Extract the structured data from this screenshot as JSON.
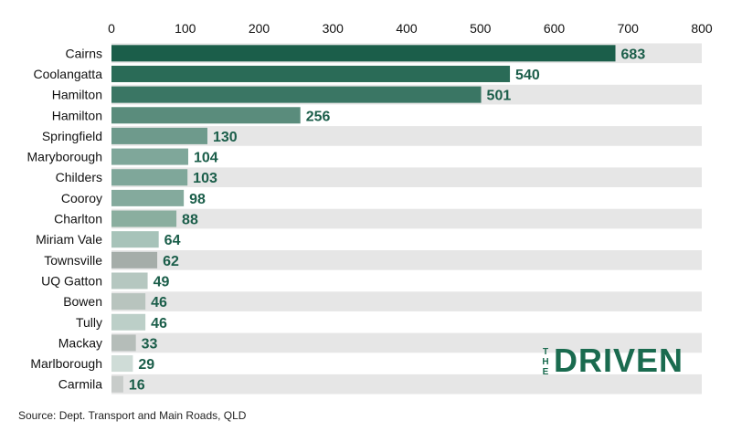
{
  "chart_data": {
    "type": "bar",
    "orientation": "horizontal",
    "categories": [
      "Cairns",
      "Coolangatta",
      "Hamilton",
      "Hamilton",
      "Springfield",
      "Maryborough",
      "Childers",
      "Cooroy",
      "Charlton",
      "Miriam Vale",
      "Townsville",
      "UQ Gatton",
      "Bowen",
      "Tully",
      "Mackay",
      "Marlborough",
      "Carmila"
    ],
    "values": [
      683,
      540,
      501,
      256,
      130,
      104,
      103,
      98,
      88,
      64,
      62,
      49,
      46,
      46,
      33,
      29,
      16
    ],
    "xlim": [
      0,
      800
    ],
    "xticks": [
      0,
      100,
      200,
      300,
      400,
      500,
      600,
      700,
      800
    ],
    "axis_position": "top",
    "title": "",
    "xlabel": "",
    "ylabel": "",
    "bar_colors": [
      "#1b5e4a",
      "#2a6b57",
      "#3a7664",
      "#5a8c7c",
      "#6e9a8c",
      "#7fa79a",
      "#7fa79a",
      "#84aa9d",
      "#8aae9f",
      "#a7c3b9",
      "#a5ada9",
      "#b5c7c0",
      "#b8c4be",
      "#bccfc8",
      "#b5bdb9",
      "#cfdcd7",
      "#c8ccca"
    ],
    "row_band_color": "#e6e6e6",
    "label_color": "#1b5e4a"
  },
  "source": "Source: Dept. Transport and Main Roads, QLD",
  "logo": {
    "small": "THE",
    "big": "DRIVEN"
  }
}
